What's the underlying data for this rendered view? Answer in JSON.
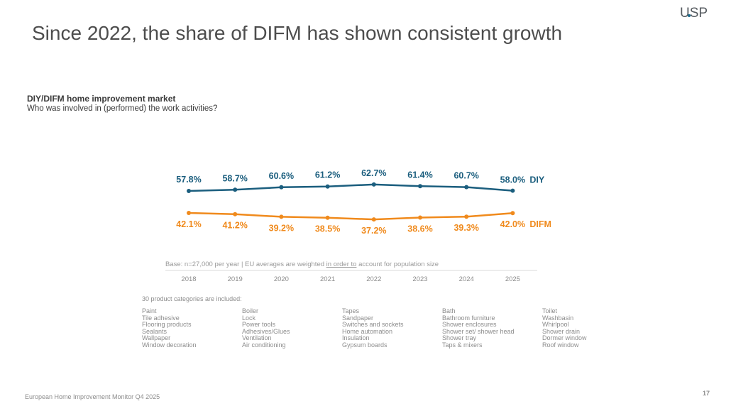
{
  "logo": {
    "text": "USP"
  },
  "slide": {
    "title": "Since 2022, the share of DIFM has shown consistent growth",
    "chart_title": "DIY/DIFM home improvement market",
    "chart_question": "Who was involved in (performed) the work activities?",
    "base_note_pre": "Base: n=27,000 per year | EU averages are weighted ",
    "base_note_underlined": "in order to",
    "base_note_post": " account for population size",
    "categories_label": "30 product categories are included:",
    "category_columns": [
      [
        "Paint",
        "Tile adhesive",
        "Flooring products",
        "Sealants",
        "Wallpaper",
        "Window decoration"
      ],
      [
        "Boiler",
        "Lock",
        "Power tools",
        "Adhesives/Glues",
        "Ventilation",
        "Air conditioning"
      ],
      [
        "Tapes",
        "Sandpaper",
        "Switches and sockets",
        "Home automation",
        "Insulation",
        "Gypsum boards"
      ],
      [
        "Bath",
        "Bathroom furniture",
        "Shower enclosures",
        "Shower set/ shower head",
        "Shower tray",
        "Taps & mixers"
      ],
      [
        "Toilet",
        "Washbasin",
        "Whirlpool",
        "Shower drain",
        "Dormer window",
        "Roof window"
      ]
    ],
    "footer": "European Home Improvement Monitor Q4 2025",
    "page_number": "17"
  },
  "chart_data": {
    "type": "line",
    "title": "DIY/DIFM home improvement market",
    "subtitle": "Who was involved in (performed) the work activities?",
    "xlabel": "",
    "ylabel": "",
    "x": [
      "2018",
      "2019",
      "2020",
      "2021",
      "2022",
      "2023",
      "2024",
      "2025"
    ],
    "series": [
      {
        "name": "DIY",
        "color": "#1b5e7e",
        "values": [
          57.8,
          58.7,
          60.6,
          61.2,
          62.7,
          61.4,
          60.7,
          58.0
        ],
        "labels": [
          "57.8%",
          "58.7%",
          "60.6%",
          "61.2%",
          "62.7%",
          "61.4%",
          "60.7%",
          "58.0%"
        ],
        "label_position": "above"
      },
      {
        "name": "DIFM",
        "color": "#f08a1c",
        "values": [
          42.1,
          41.2,
          39.2,
          38.5,
          37.2,
          38.6,
          39.3,
          42.0
        ],
        "labels": [
          "42.1%",
          "41.2%",
          "39.2%",
          "38.5%",
          "37.2%",
          "38.6%",
          "39.3%",
          "42.0%"
        ],
        "label_position": "below"
      }
    ],
    "unit": "%",
    "grid": false,
    "legend": "inline-right",
    "y_axis_visible": false
  }
}
